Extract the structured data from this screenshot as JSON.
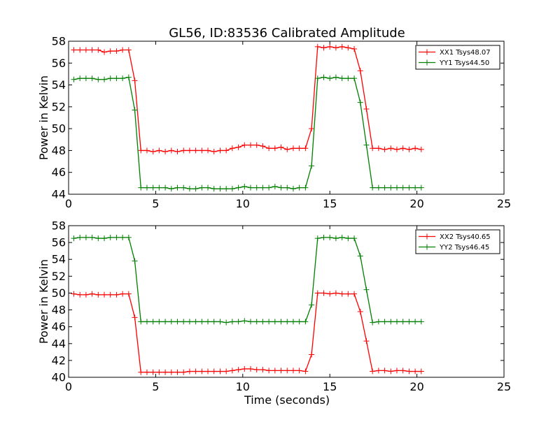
{
  "title": "GL56, ID:83536 Calibrated Amplitude",
  "xlabel": "Time (seconds)",
  "colors": {
    "red": "#ff0000",
    "green": "#007f00",
    "axis": "#000000"
  },
  "chart_data": [
    {
      "type": "line",
      "ylabel": "Power in Kelvin",
      "xlim": [
        0,
        25
      ],
      "ylim": [
        44,
        58
      ],
      "xticks": [
        "0",
        "5",
        "10",
        "15",
        "20",
        "25"
      ],
      "yticks": [
        "44",
        "46",
        "48",
        "50",
        "52",
        "54",
        "56",
        "58"
      ],
      "grid": false,
      "legend_position": "top-right",
      "series": [
        {
          "name": "XX1 Tsys48.07",
          "color": "#ff0000",
          "x": [
            0.3,
            0.65,
            1.0,
            1.35,
            1.7,
            2.05,
            2.4,
            2.75,
            3.1,
            3.45,
            3.8,
            4.15,
            4.5,
            4.85,
            5.2,
            5.55,
            5.9,
            6.25,
            6.6,
            6.95,
            7.3,
            7.65,
            8.0,
            8.35,
            8.7,
            9.05,
            9.4,
            9.75,
            10.1,
            10.45,
            10.8,
            11.15,
            11.5,
            11.85,
            12.2,
            12.55,
            12.9,
            13.25,
            13.6,
            13.95,
            14.3,
            14.65,
            15.0,
            15.35,
            15.7,
            16.05,
            16.4,
            16.75,
            17.1,
            17.45,
            17.8,
            18.15,
            18.5,
            18.85,
            19.2,
            19.55,
            19.9,
            20.25
          ],
          "y": [
            57.2,
            57.2,
            57.2,
            57.2,
            57.2,
            57.0,
            57.1,
            57.1,
            57.2,
            57.2,
            54.4,
            48.0,
            48.0,
            47.9,
            48.0,
            47.9,
            48.0,
            47.9,
            48.0,
            48.0,
            48.0,
            48.0,
            48.0,
            47.9,
            48.0,
            48.0,
            48.2,
            48.3,
            48.5,
            48.5,
            48.5,
            48.4,
            48.2,
            48.2,
            48.3,
            48.1,
            48.2,
            48.2,
            48.2,
            50.0,
            57.5,
            57.4,
            57.5,
            57.4,
            57.5,
            57.4,
            57.3,
            55.3,
            51.8,
            48.2,
            48.2,
            48.1,
            48.2,
            48.1,
            48.2,
            48.1,
            48.2,
            48.1
          ]
        },
        {
          "name": "YY1 Tsys44.50",
          "color": "#007f00",
          "x": [
            0.3,
            0.65,
            1.0,
            1.35,
            1.7,
            2.05,
            2.4,
            2.75,
            3.1,
            3.45,
            3.8,
            4.15,
            4.5,
            4.85,
            5.2,
            5.55,
            5.9,
            6.25,
            6.6,
            6.95,
            7.3,
            7.65,
            8.0,
            8.35,
            8.7,
            9.05,
            9.4,
            9.75,
            10.1,
            10.45,
            10.8,
            11.15,
            11.5,
            11.85,
            12.2,
            12.55,
            12.9,
            13.25,
            13.6,
            13.95,
            14.3,
            14.65,
            15.0,
            15.35,
            15.7,
            16.05,
            16.4,
            16.75,
            17.1,
            17.45,
            17.8,
            18.15,
            18.5,
            18.85,
            19.2,
            19.55,
            19.9,
            20.25
          ],
          "y": [
            54.5,
            54.6,
            54.6,
            54.6,
            54.5,
            54.5,
            54.6,
            54.6,
            54.6,
            54.7,
            51.7,
            44.6,
            44.6,
            44.6,
            44.6,
            44.6,
            44.5,
            44.6,
            44.6,
            44.5,
            44.5,
            44.6,
            44.6,
            44.5,
            44.5,
            44.5,
            44.5,
            44.6,
            44.7,
            44.6,
            44.6,
            44.6,
            44.6,
            44.7,
            44.6,
            44.6,
            44.5,
            44.6,
            44.6,
            46.6,
            54.6,
            54.7,
            54.6,
            54.7,
            54.6,
            54.6,
            54.6,
            52.4,
            48.5,
            44.6,
            44.6,
            44.6,
            44.6,
            44.6,
            44.6,
            44.6,
            44.6,
            44.6
          ]
        }
      ]
    },
    {
      "type": "line",
      "ylabel": "Power in Kelvin",
      "xlabel": "Time (seconds)",
      "xlim": [
        0,
        25
      ],
      "ylim": [
        40,
        58
      ],
      "xticks": [
        "0",
        "5",
        "10",
        "15",
        "20",
        "25"
      ],
      "yticks": [
        "40",
        "42",
        "44",
        "46",
        "48",
        "50",
        "52",
        "54",
        "56",
        "58"
      ],
      "grid": false,
      "legend_position": "top-right",
      "series": [
        {
          "name": "XX2 Tsys40.65",
          "color": "#ff0000",
          "x": [
            0.3,
            0.65,
            1.0,
            1.35,
            1.7,
            2.05,
            2.4,
            2.75,
            3.1,
            3.45,
            3.8,
            4.15,
            4.5,
            4.85,
            5.2,
            5.55,
            5.9,
            6.25,
            6.6,
            6.95,
            7.3,
            7.65,
            8.0,
            8.35,
            8.7,
            9.05,
            9.4,
            9.75,
            10.1,
            10.45,
            10.8,
            11.15,
            11.5,
            11.85,
            12.2,
            12.55,
            12.9,
            13.25,
            13.6,
            13.95,
            14.3,
            14.65,
            15.0,
            15.35,
            15.7,
            16.05,
            16.4,
            16.75,
            17.1,
            17.45,
            17.8,
            18.15,
            18.5,
            18.85,
            19.2,
            19.55,
            19.9,
            20.25
          ],
          "y": [
            49.9,
            49.8,
            49.8,
            49.9,
            49.8,
            49.8,
            49.8,
            49.8,
            49.9,
            49.9,
            47.1,
            40.6,
            40.6,
            40.6,
            40.6,
            40.6,
            40.6,
            40.6,
            40.6,
            40.7,
            40.7,
            40.7,
            40.7,
            40.7,
            40.7,
            40.7,
            40.8,
            40.9,
            41.0,
            41.0,
            40.9,
            40.9,
            40.8,
            40.8,
            40.8,
            40.8,
            40.8,
            40.8,
            40.7,
            42.7,
            50.0,
            50.0,
            49.9,
            50.0,
            49.9,
            49.9,
            49.9,
            47.8,
            44.3,
            40.7,
            40.8,
            40.8,
            40.7,
            40.8,
            40.8,
            40.7,
            40.7,
            40.7
          ]
        },
        {
          "name": "YY2 Tsys46.45",
          "color": "#007f00",
          "x": [
            0.3,
            0.65,
            1.0,
            1.35,
            1.7,
            2.05,
            2.4,
            2.75,
            3.1,
            3.45,
            3.8,
            4.15,
            4.5,
            4.85,
            5.2,
            5.55,
            5.9,
            6.25,
            6.6,
            6.95,
            7.3,
            7.65,
            8.0,
            8.35,
            8.7,
            9.05,
            9.4,
            9.75,
            10.1,
            10.45,
            10.8,
            11.15,
            11.5,
            11.85,
            12.2,
            12.55,
            12.9,
            13.25,
            13.6,
            13.95,
            14.3,
            14.65,
            15.0,
            15.35,
            15.7,
            16.05,
            16.4,
            16.75,
            17.1,
            17.45,
            17.8,
            18.15,
            18.5,
            18.85,
            19.2,
            19.55,
            19.9,
            20.25
          ],
          "y": [
            56.5,
            56.6,
            56.6,
            56.6,
            56.5,
            56.5,
            56.6,
            56.6,
            56.6,
            56.6,
            53.8,
            46.6,
            46.6,
            46.6,
            46.6,
            46.6,
            46.6,
            46.6,
            46.6,
            46.6,
            46.6,
            46.6,
            46.6,
            46.6,
            46.6,
            46.5,
            46.6,
            46.6,
            46.7,
            46.6,
            46.6,
            46.6,
            46.6,
            46.6,
            46.6,
            46.6,
            46.6,
            46.6,
            46.6,
            48.6,
            56.5,
            56.6,
            56.6,
            56.5,
            56.6,
            56.5,
            56.5,
            54.4,
            50.4,
            46.5,
            46.6,
            46.6,
            46.6,
            46.6,
            46.6,
            46.6,
            46.6,
            46.6
          ]
        }
      ]
    }
  ]
}
